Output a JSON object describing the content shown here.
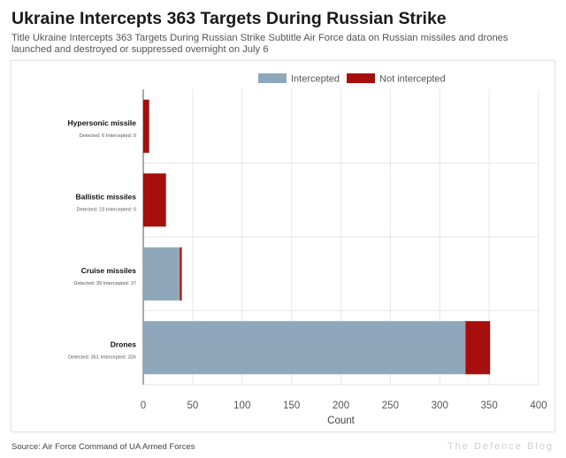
{
  "header": {
    "title": "Ukraine Intercepts 363 Targets During Russian Strike",
    "subtitle": "Title Ukraine Intercepts 363 Targets During Russian Strike Subtitle Air Force data on Russian missiles and drones launched and destroyed or suppressed overnight on July 6"
  },
  "footer": {
    "source": "Source: Air Force Command of UA Armed Forces",
    "brand": "The Defence Blog"
  },
  "colors": {
    "intercepted": "#8ea7ba",
    "not_intercepted": "#a60f0c",
    "grid": "#e6e6ee",
    "axis": "#555555"
  },
  "chart_data": {
    "type": "bar",
    "orientation": "horizontal",
    "stacked": true,
    "categories": [
      "Hypersonic missile",
      "Ballistic missiles",
      "Cruise missiles",
      "Drones"
    ],
    "category_notes": [
      "Detected: 6  Intercepted: 0",
      "Detected: 23  Intercepted: 0",
      "Detected: 39  Intercepted: 37",
      "Detected: 351  Intercepted: 326"
    ],
    "series": [
      {
        "name": "Intercepted",
        "values": [
          0,
          0,
          37,
          326
        ]
      },
      {
        "name": "Not intercepted",
        "values": [
          6,
          23,
          2,
          25
        ]
      }
    ],
    "xlabel": "Count",
    "ylabel": "",
    "xlim": [
      0,
      400
    ],
    "xticks": [
      0,
      50,
      100,
      150,
      200,
      250,
      300,
      350,
      400
    ],
    "grid": true,
    "legend_position": "top-center"
  }
}
